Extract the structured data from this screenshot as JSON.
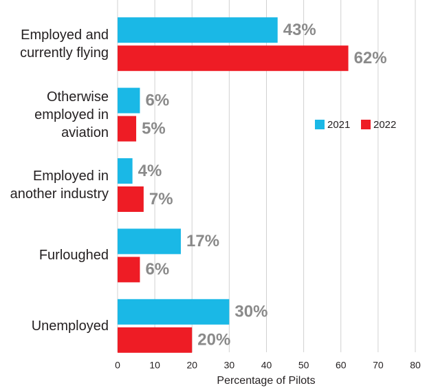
{
  "chart_data": {
    "type": "bar",
    "orientation": "horizontal",
    "x_label": "Percentage of Pilots",
    "categories": [
      "Employed and currently flying",
      "Otherwise employed in aviation",
      "Employed in another industry",
      "Furloughed",
      "Unemployed"
    ],
    "series": [
      {
        "name": "2021",
        "color": "#1ab8e6",
        "values": [
          43,
          6,
          4,
          17,
          30
        ],
        "value_labels": [
          "43%",
          "6%",
          "4%",
          "17%",
          "30%"
        ]
      },
      {
        "name": "2022",
        "color": "#ee1c25",
        "values": [
          62,
          5,
          7,
          6,
          20
        ],
        "value_labels": [
          "62%",
          "5%",
          "7%",
          "6%",
          "20%"
        ]
      }
    ],
    "xlim": [
      0,
      80
    ],
    "xticks": [
      0,
      10,
      20,
      30,
      40,
      50,
      60,
      70,
      80
    ],
    "grid": true,
    "legend": "right"
  }
}
